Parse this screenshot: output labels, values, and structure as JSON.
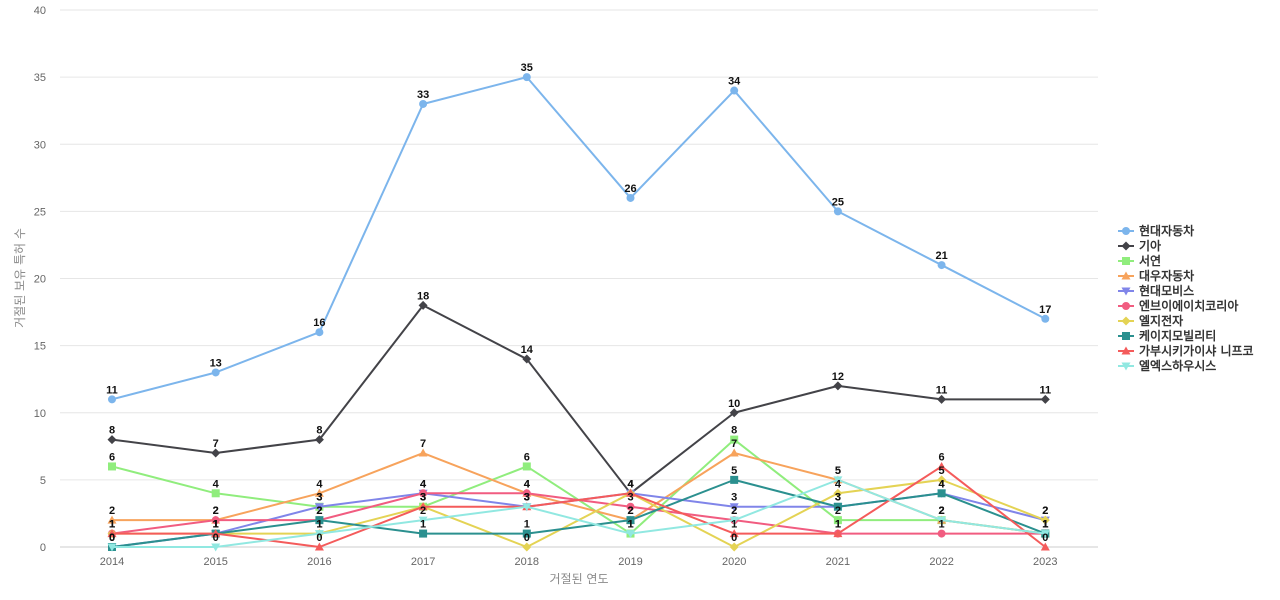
{
  "chart_data": {
    "type": "line",
    "title": "",
    "xlabel": "거절된 연도",
    "ylabel": "거절된 보유 특허 수",
    "ylim": [
      0,
      40
    ],
    "yticks": [
      0,
      5,
      10,
      15,
      20,
      25,
      30,
      35,
      40
    ],
    "grid": true,
    "legend_position": "right",
    "categories": [
      "2014",
      "2015",
      "2016",
      "2017",
      "2018",
      "2019",
      "2020",
      "2021",
      "2022",
      "2023"
    ],
    "series": [
      {
        "name": "현대자동차",
        "color": "#7cb5ec",
        "marker": "circle",
        "values": [
          11,
          13,
          16,
          33,
          35,
          26,
          34,
          25,
          21,
          17
        ]
      },
      {
        "name": "기아",
        "color": "#434348",
        "marker": "diamond",
        "values": [
          8,
          7,
          8,
          18,
          14,
          4,
          10,
          12,
          11,
          11
        ]
      },
      {
        "name": "서연",
        "color": "#90ed7d",
        "marker": "square",
        "values": [
          6,
          4,
          3,
          3,
          6,
          1,
          8,
          2,
          2,
          1
        ]
      },
      {
        "name": "대우자동차",
        "color": "#f7a35c",
        "marker": "triangle",
        "values": [
          2,
          2,
          4,
          7,
          4,
          2,
          7,
          5,
          2,
          1
        ]
      },
      {
        "name": "현대모비스",
        "color": "#8085e9",
        "marker": "triangle-down",
        "values": [
          0,
          1,
          3,
          4,
          3,
          4,
          3,
          3,
          4,
          2
        ]
      },
      {
        "name": "엔브이에이치코리아",
        "color": "#f15c80",
        "marker": "circle",
        "values": [
          1,
          2,
          2,
          4,
          4,
          3,
          2,
          1,
          1,
          1
        ]
      },
      {
        "name": "엘지전자",
        "color": "#e4d354",
        "marker": "diamond",
        "values": [
          1,
          1,
          1,
          3,
          0,
          4,
          0,
          4,
          5,
          2
        ]
      },
      {
        "name": "케이지모빌리티",
        "color": "#2b908f",
        "marker": "square",
        "values": [
          0,
          1,
          2,
          1,
          1,
          2,
          5,
          3,
          4,
          1
        ]
      },
      {
        "name": "가부시키가이샤 니프코",
        "color": "#f45b5b",
        "marker": "triangle",
        "values": [
          1,
          1,
          0,
          3,
          3,
          4,
          1,
          1,
          6,
          0
        ]
      },
      {
        "name": "엘엑스하우시스",
        "color": "#91e8e1",
        "marker": "triangle-down",
        "values": [
          0,
          0,
          1,
          2,
          3,
          1,
          2,
          5,
          2,
          1
        ]
      }
    ]
  }
}
